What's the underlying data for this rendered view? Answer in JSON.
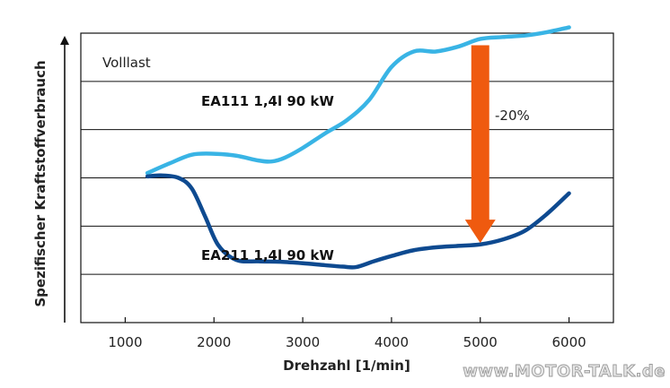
{
  "chart_data": {
    "type": "line",
    "title": "",
    "annotation_text": "Volllast",
    "xlabel": "Drehzahl [1/min]",
    "ylabel": "Spezifischer Kraftstoffverbrauch",
    "xlim": [
      500,
      6500
    ],
    "ylim": [
      0,
      6
    ],
    "x_ticks": [
      1000,
      2000,
      3000,
      4000,
      5000,
      6000
    ],
    "x_tick_labels": [
      "1000",
      "2000",
      "3000",
      "4000",
      "5000",
      "6000"
    ],
    "y_tick_labels_shown": false,
    "grid": "horizontal",
    "series": [
      {
        "name": "EA111 1,4l 90 kW",
        "color": "#39b4e5",
        "points": [
          [
            1250,
            3.1
          ],
          [
            1500,
            3.3
          ],
          [
            1750,
            3.48
          ],
          [
            2000,
            3.5
          ],
          [
            2250,
            3.46
          ],
          [
            2500,
            3.36
          ],
          [
            2650,
            3.34
          ],
          [
            2800,
            3.42
          ],
          [
            3000,
            3.62
          ],
          [
            3250,
            3.92
          ],
          [
            3500,
            4.2
          ],
          [
            3750,
            4.62
          ],
          [
            4000,
            5.3
          ],
          [
            4250,
            5.62
          ],
          [
            4500,
            5.62
          ],
          [
            4750,
            5.72
          ],
          [
            5000,
            5.88
          ],
          [
            5250,
            5.92
          ],
          [
            5500,
            5.95
          ],
          [
            5750,
            6.02
          ],
          [
            6000,
            6.12
          ]
        ]
      },
      {
        "name": "EA211 1,4l 90 kW",
        "color": "#0e4a90",
        "points": [
          [
            1250,
            3.03
          ],
          [
            1400,
            3.05
          ],
          [
            1600,
            3.0
          ],
          [
            1750,
            2.78
          ],
          [
            1900,
            2.2
          ],
          [
            2050,
            1.6
          ],
          [
            2250,
            1.3
          ],
          [
            2500,
            1.27
          ],
          [
            2750,
            1.26
          ],
          [
            3000,
            1.23
          ],
          [
            3250,
            1.19
          ],
          [
            3450,
            1.16
          ],
          [
            3600,
            1.15
          ],
          [
            3800,
            1.27
          ],
          [
            4000,
            1.38
          ],
          [
            4250,
            1.5
          ],
          [
            4500,
            1.56
          ],
          [
            4750,
            1.59
          ],
          [
            5000,
            1.62
          ],
          [
            5250,
            1.72
          ],
          [
            5500,
            1.9
          ],
          [
            5750,
            2.25
          ],
          [
            6000,
            2.68
          ]
        ]
      }
    ],
    "annotations": [
      {
        "type": "arrow",
        "label": "-20%",
        "color": "#ef5a0f",
        "x": 5000,
        "from_y": 5.75,
        "to_y": 1.65
      }
    ]
  },
  "watermark": "www.MOTOR-TALK.de"
}
